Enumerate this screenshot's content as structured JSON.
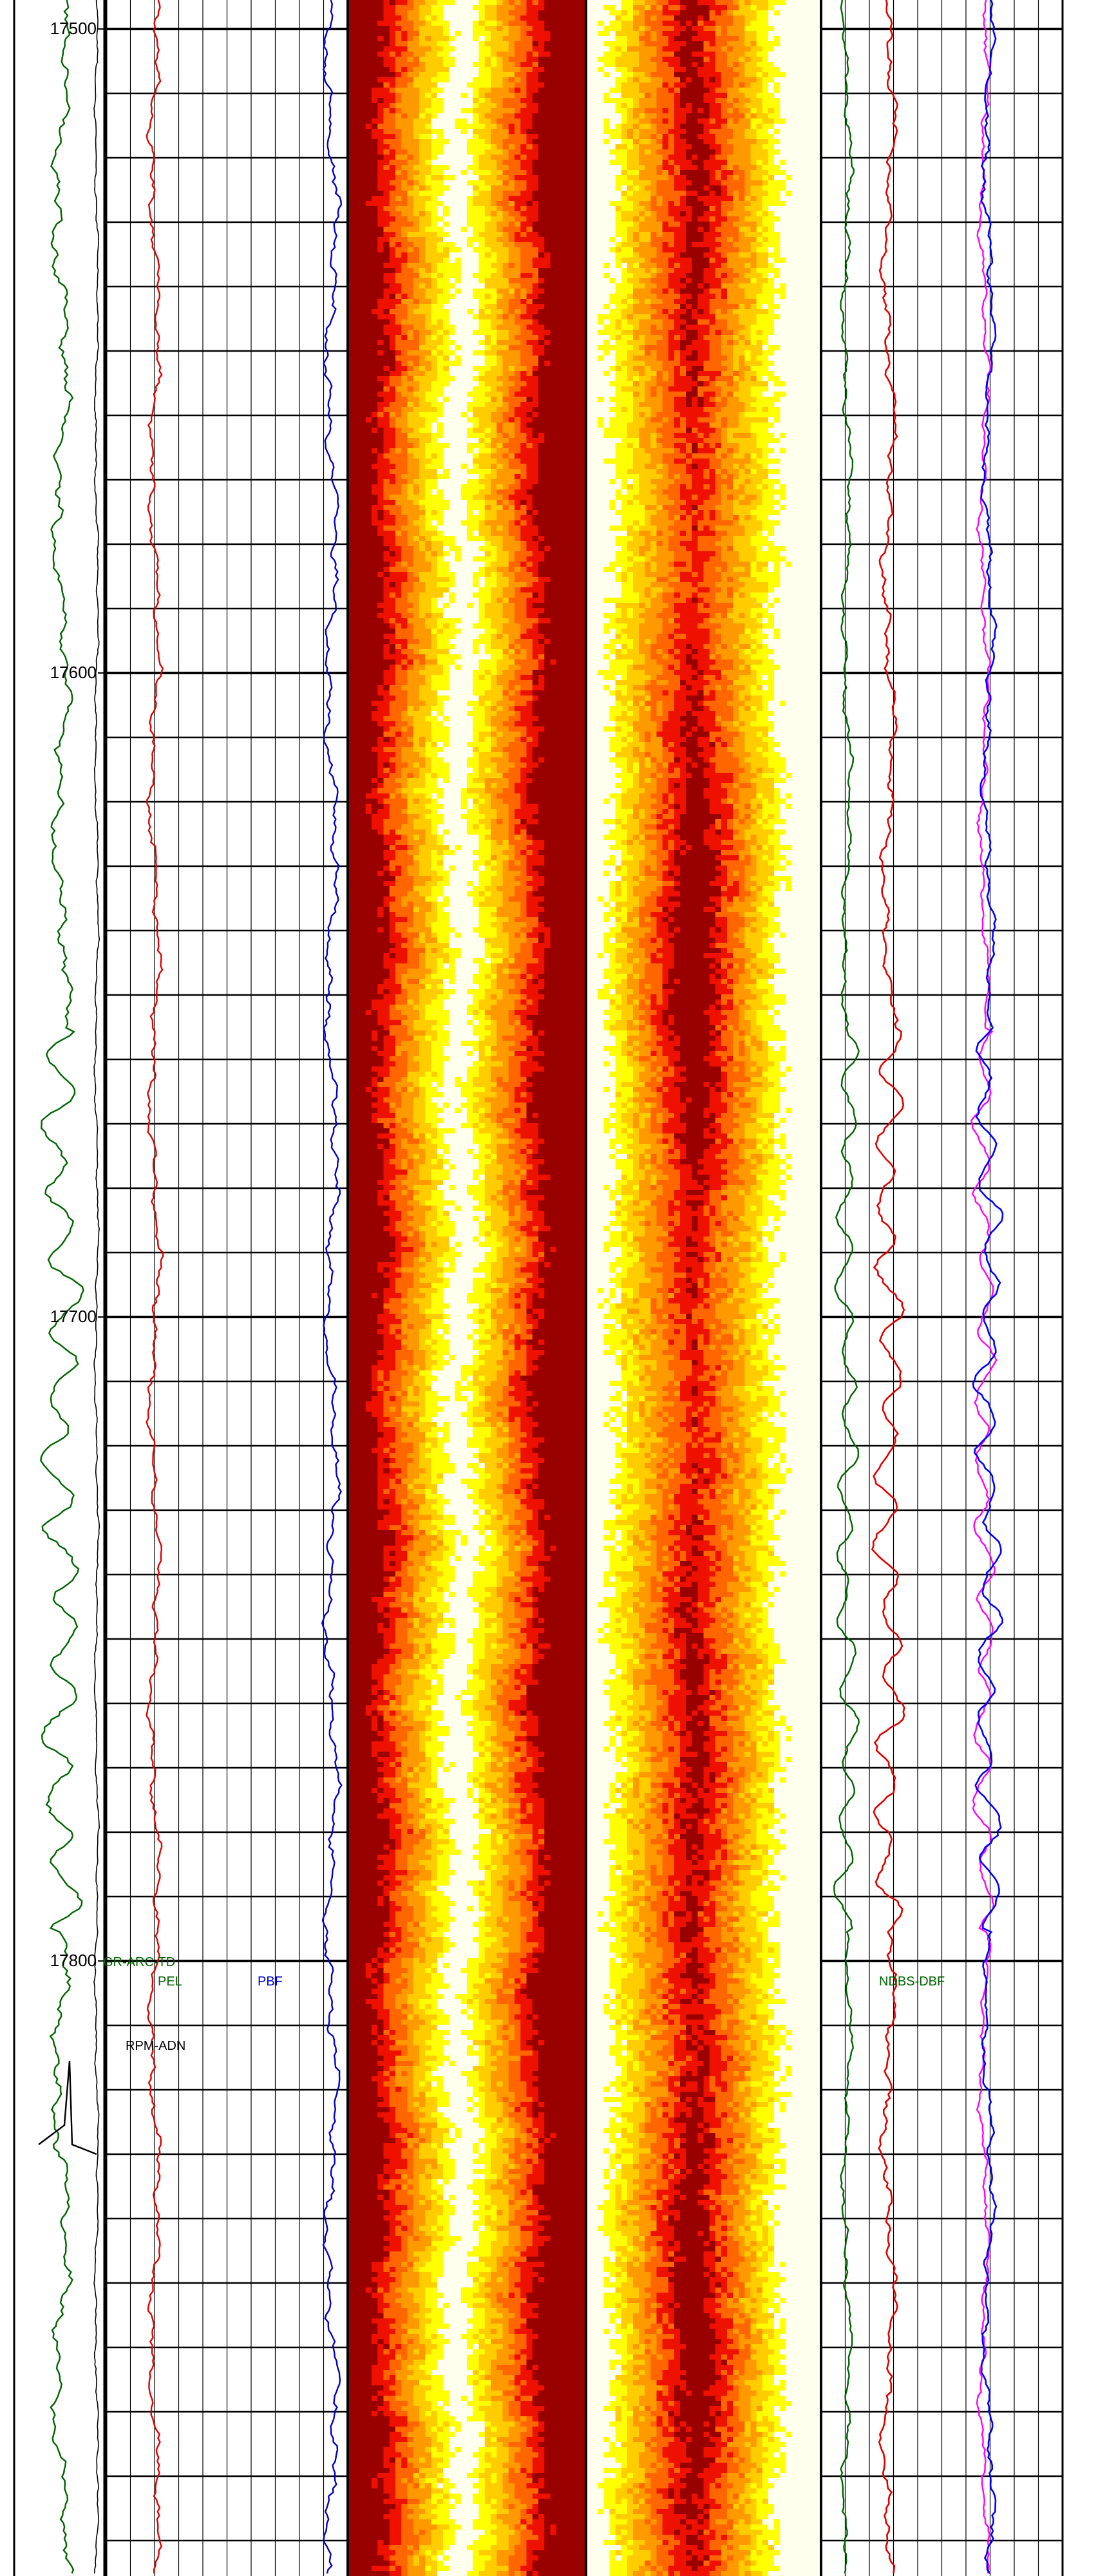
{
  "chart_data": {
    "type": "well-log",
    "depth_axis": {
      "direction": "down",
      "range": [
        17500,
        17900
      ],
      "major_ticks": [
        17500,
        17600,
        17700,
        17800
      ],
      "tick_labels": [
        "17500",
        "17600",
        "17700",
        "17800"
      ]
    },
    "grid": true,
    "tracks": [
      {
        "name": "depth",
        "curves": [
          {
            "color": "#006400"
          },
          {
            "color": "#000000"
          }
        ]
      },
      {
        "name": "track-1",
        "curves": [
          {
            "color": "#e00000"
          },
          {
            "color": "#0000cc"
          }
        ]
      },
      {
        "name": "image-1",
        "type": "image",
        "colormap": [
          "#ffffee",
          "#ffff00",
          "#ffcc00",
          "#ff9900",
          "#ff6600",
          "#ee1100",
          "#990000"
        ]
      },
      {
        "name": "image-2",
        "type": "image",
        "colormap": [
          "#ffffee",
          "#ffff00",
          "#ffcc00",
          "#ff9900",
          "#ff6600",
          "#ee1100",
          "#990000"
        ]
      },
      {
        "name": "track-4",
        "curves": [
          {
            "color": "#006400"
          },
          {
            "color": "#e00000"
          },
          {
            "color": "#0000ff"
          },
          {
            "color": "#ff00ff"
          }
        ]
      }
    ],
    "annotations": [
      {
        "text": "GR-ARC-TD",
        "color": "#006400",
        "depth": 17800
      },
      {
        "text": "PEL",
        "color": "#006400",
        "depth": 17803
      },
      {
        "text": "PBF",
        "color": "#0000cc",
        "depth": 17803
      },
      {
        "text": "RPM-ADN",
        "color": "#000000",
        "depth": 17813
      },
      {
        "text": "NDBS-DBF",
        "color": "#006400",
        "depth": 17803
      }
    ]
  }
}
